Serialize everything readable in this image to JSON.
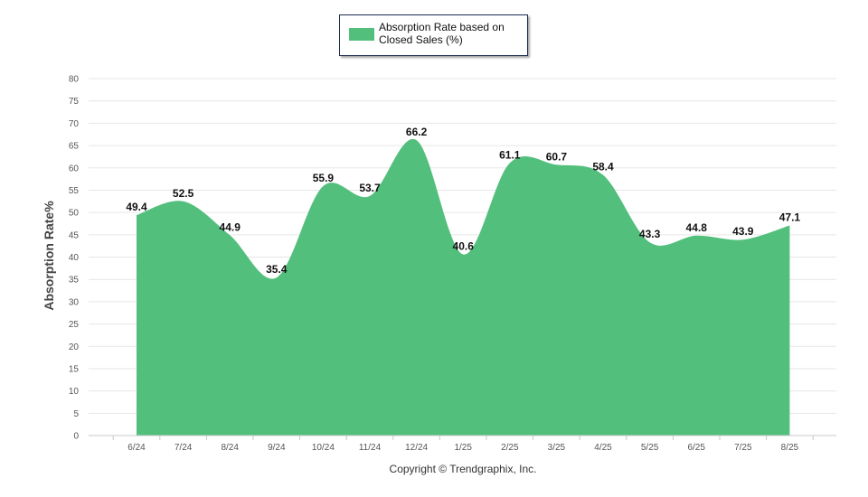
{
  "legend": {
    "label": "Absorption Rate based on Closed Sales (%)"
  },
  "footer": {
    "copyright": "Copyright © Trendgraphix, Inc."
  },
  "colors": {
    "area": "#52bf7c",
    "grid": "#e6e6e6",
    "axis": "#c8c8c8"
  },
  "chart_data": {
    "type": "area",
    "categories": [
      "6/24",
      "7/24",
      "8/24",
      "9/24",
      "10/24",
      "11/24",
      "12/24",
      "1/25",
      "2/25",
      "3/25",
      "4/25",
      "5/25",
      "6/25",
      "7/25",
      "8/25"
    ],
    "series": [
      {
        "name": "Absorption Rate based on Closed Sales (%)",
        "values": [
          49.4,
          52.5,
          44.9,
          35.4,
          55.9,
          53.7,
          66.2,
          40.6,
          61.1,
          60.7,
          58.4,
          43.3,
          44.8,
          43.9,
          47.1
        ]
      }
    ],
    "ylabel": "Absorption Rate%",
    "xlabel": "",
    "ylim": [
      0,
      80
    ],
    "yticks": [
      0,
      5,
      10,
      15,
      20,
      25,
      30,
      35,
      40,
      45,
      50,
      55,
      60,
      65,
      70,
      75,
      80
    ],
    "grid": true,
    "data_labels": true,
    "legend_position": "top-center"
  }
}
